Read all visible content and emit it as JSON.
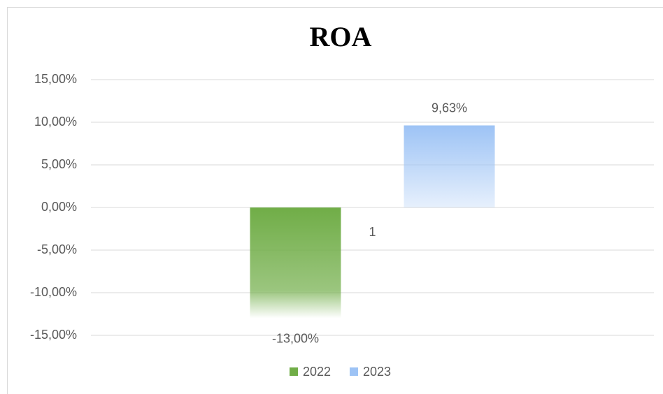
{
  "chart_data": {
    "type": "bar",
    "title": "ROA",
    "categories": [
      "1"
    ],
    "series": [
      {
        "name": "2022",
        "color": "#70ad47",
        "values": [
          -13
        ],
        "value_labels": [
          "-13,00%"
        ]
      },
      {
        "name": "2023",
        "color": "#9dc3f5",
        "values": [
          9.63
        ],
        "value_labels": [
          "9,63%"
        ]
      }
    ],
    "ylim": [
      -15,
      15
    ],
    "yticks": [
      {
        "value": -15,
        "label": "-15,00%"
      },
      {
        "value": -10,
        "label": "-10,00%"
      },
      {
        "value": -5,
        "label": "-5,00%"
      },
      {
        "value": 0,
        "label": "0,00%"
      },
      {
        "value": 5,
        "label": "5,00%"
      },
      {
        "value": 10,
        "label": "10,00%"
      },
      {
        "value": 15,
        "label": "15,00%"
      }
    ],
    "grid": true,
    "legend": "bottom"
  }
}
